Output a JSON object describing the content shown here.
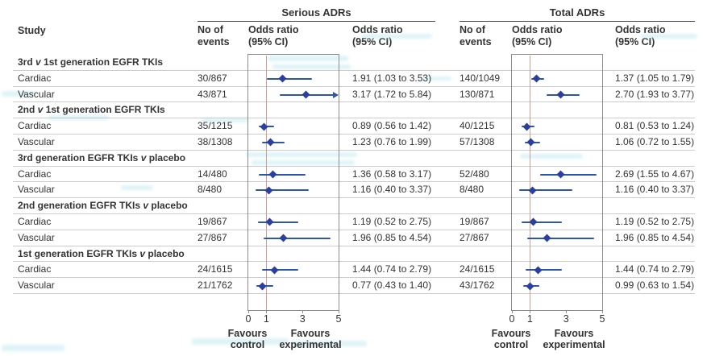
{
  "header": {
    "study": "Study",
    "panels": [
      {
        "title": "Serious ADRs"
      },
      {
        "title": "Total ADRs"
      }
    ],
    "events_col": [
      "No of",
      "events"
    ],
    "or_col": [
      "Odds ratio",
      "(95% CI)"
    ]
  },
  "footer": {
    "favours_control": [
      "Favours",
      "control"
    ],
    "favours_experimental": [
      "Favours",
      "experimental"
    ]
  },
  "colors": {
    "marker": "#2b3f9e",
    "ci_line": "#2d55a8",
    "reference_line": "#c89f97",
    "separator": "#cccccc",
    "frame": "#8c8c8c",
    "text": "#333333",
    "watermark": "#c5eaf3"
  },
  "chart_data": {
    "type": "forest",
    "marker": "diamond",
    "legend": "none",
    "axis": {
      "min": 0,
      "max": 5,
      "tick_values": [
        0,
        1,
        3,
        5
      ],
      "ticks": [
        "0",
        "1",
        "3",
        "5"
      ],
      "reference_line": 1
    },
    "panel_names": [
      "Serious ADRs",
      "Total ADRs"
    ],
    "rows": [
      {
        "type": "group",
        "label": "3rd v 1st generation EGFR TKIs"
      },
      {
        "type": "data",
        "label": "Cardiac",
        "serious": {
          "events": "30/867",
          "or": 1.91,
          "low": 1.03,
          "high": 3.53,
          "or_text": "1.91 (1.03 to 3.53)"
        },
        "total": {
          "events": "140/1049",
          "or": 1.37,
          "low": 1.05,
          "high": 1.79,
          "or_text": "1.37 (1.05 to 1.79)"
        }
      },
      {
        "type": "data",
        "label": "Vascular",
        "serious": {
          "events": "43/871",
          "or": 3.17,
          "low": 1.72,
          "high": 5.84,
          "or_text": "3.17 (1.72 to 5.84)"
        },
        "total": {
          "events": "130/871",
          "or": 2.7,
          "low": 1.93,
          "high": 3.77,
          "or_text": "2.70 (1.93 to 3.77)"
        }
      },
      {
        "type": "group",
        "label": "2nd v 1st generation EGFR TKIs"
      },
      {
        "type": "data",
        "label": "Cardiac",
        "serious": {
          "events": "35/1215",
          "or": 0.89,
          "low": 0.56,
          "high": 1.42,
          "or_text": "0.89 (0.56 to 1.42)"
        },
        "total": {
          "events": "40/1215",
          "or": 0.81,
          "low": 0.53,
          "high": 1.24,
          "or_text": "0.81 (0.53 to 1.24)"
        }
      },
      {
        "type": "data",
        "label": "Vascular",
        "serious": {
          "events": "38/1308",
          "or": 1.23,
          "low": 0.76,
          "high": 1.99,
          "or_text": "1.23 (0.76 to 1.99)"
        },
        "total": {
          "events": "57/1308",
          "or": 1.06,
          "low": 0.72,
          "high": 1.55,
          "or_text": "1.06 (0.72 to 1.55)"
        }
      },
      {
        "type": "group",
        "label": "3rd generation EGFR TKIs v placebo"
      },
      {
        "type": "data",
        "label": "Cardiac",
        "serious": {
          "events": "14/480",
          "or": 1.36,
          "low": 0.58,
          "high": 3.17,
          "or_text": "1.36 (0.58 to 3.17)"
        },
        "total": {
          "events": "52/480",
          "or": 2.69,
          "low": 1.55,
          "high": 4.67,
          "or_text": "2.69 (1.55 to 4.67)"
        }
      },
      {
        "type": "data",
        "label": "Vascular",
        "serious": {
          "events": "8/480",
          "or": 1.16,
          "low": 0.4,
          "high": 3.37,
          "or_text": "1.16 (0.40 to 3.37)"
        },
        "total": {
          "events": "8/480",
          "or": 1.16,
          "low": 0.4,
          "high": 3.37,
          "or_text": "1.16 (0.40 to 3.37)"
        }
      },
      {
        "type": "group",
        "label": "2nd generation EGFR TKIs v placebo"
      },
      {
        "type": "data",
        "label": "Cardiac",
        "serious": {
          "events": "19/867",
          "or": 1.19,
          "low": 0.52,
          "high": 2.75,
          "or_text": "1.19 (0.52 to 2.75)"
        },
        "total": {
          "events": "19/867",
          "or": 1.19,
          "low": 0.52,
          "high": 2.75,
          "or_text": "1.19 (0.52 to 2.75)"
        }
      },
      {
        "type": "data",
        "label": "Vascular",
        "serious": {
          "events": "27/867",
          "or": 1.96,
          "low": 0.85,
          "high": 4.54,
          "or_text": "1.96 (0.85 to 4.54)"
        },
        "total": {
          "events": "27/867",
          "or": 1.96,
          "low": 0.85,
          "high": 4.54,
          "or_text": "1.96 (0.85 to 4.54)"
        }
      },
      {
        "type": "group",
        "label": "1st generation EGFR TKIs v placebo"
      },
      {
        "type": "data",
        "label": "Cardiac",
        "serious": {
          "events": "24/1615",
          "or": 1.44,
          "low": 0.74,
          "high": 2.79,
          "or_text": "1.44 (0.74 to 2.79)"
        },
        "total": {
          "events": "24/1615",
          "or": 1.44,
          "low": 0.74,
          "high": 2.79,
          "or_text": "1.44 (0.74 to 2.79)"
        }
      },
      {
        "type": "data",
        "label": "Vascular",
        "serious": {
          "events": "21/1762",
          "or": 0.77,
          "low": 0.43,
          "high": 1.4,
          "or_text": "0.77 (0.43 to 1.40)"
        },
        "total": {
          "events": "43/1762",
          "or": 0.99,
          "low": 0.63,
          "high": 1.54,
          "or_text": "0.99 (0.63 to 1.54)"
        }
      }
    ]
  }
}
